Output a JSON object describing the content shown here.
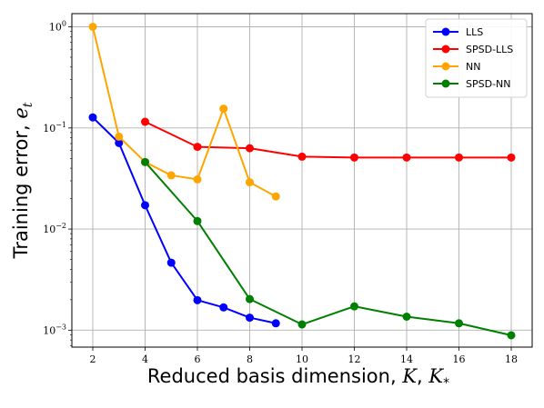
{
  "chart_data": {
    "type": "line",
    "title": "",
    "xlabel": "Reduced basis dimension,",
    "xlabel_math": [
      "K",
      "K"
    ],
    "xlabel_math_sub": "*",
    "ylabel": "Training error,",
    "ylabel_math": "e",
    "ylabel_math_sub": "t",
    "xlim": [
      1.2,
      18.8
    ],
    "ylim": [
      0.00068,
      1.35
    ],
    "yscale": "log",
    "xticks": [
      2,
      4,
      6,
      8,
      10,
      12,
      14,
      16,
      18
    ],
    "xtick_labels": [
      "2",
      "4",
      "6",
      "8",
      "10",
      "12",
      "14",
      "16",
      "18"
    ],
    "yticks": [
      0.001,
      0.01,
      0.1,
      1
    ],
    "ytick_labels": [
      {
        "base": "10",
        "exp": "−3"
      },
      {
        "base": "10",
        "exp": "−2"
      },
      {
        "base": "10",
        "exp": "−1"
      },
      {
        "base": "10",
        "exp": "0"
      }
    ],
    "grid": true,
    "legend_position": "top-right",
    "series": [
      {
        "name": "LLS",
        "color": "#0000ff",
        "x": [
          2,
          3,
          4,
          5,
          6,
          7,
          8,
          9
        ],
        "y": [
          0.127,
          0.071,
          0.0172,
          0.00465,
          0.00198,
          0.00168,
          0.00133,
          0.00117
        ]
      },
      {
        "name": "SPSD-LLS",
        "color": "#ff0000",
        "x": [
          4,
          6,
          8,
          10,
          12,
          14,
          16,
          18
        ],
        "y": [
          0.115,
          0.065,
          0.063,
          0.052,
          0.051,
          0.051,
          0.051,
          0.051
        ]
      },
      {
        "name": "NN",
        "color": "#ffa500",
        "x": [
          2,
          3,
          4,
          5,
          6,
          7,
          8,
          9
        ],
        "y": [
          1.0,
          0.082,
          0.046,
          0.034,
          0.031,
          0.155,
          0.029,
          0.021
        ]
      },
      {
        "name": "SPSD-NN",
        "color": "#008000",
        "x": [
          4,
          6,
          8,
          10,
          12,
          14,
          16,
          18
        ],
        "y": [
          0.046,
          0.012,
          0.00203,
          0.00114,
          0.00172,
          0.00136,
          0.00117,
          0.00089
        ]
      }
    ]
  }
}
